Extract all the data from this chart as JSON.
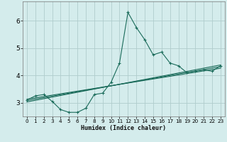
{
  "xlabel": "Humidex (Indice chaleur)",
  "bg_color": "#d4ecec",
  "grid_color": "#b0cccc",
  "line_color": "#1a6b5a",
  "xlim": [
    -0.5,
    23.5
  ],
  "ylim": [
    2.5,
    6.7
  ],
  "yticks": [
    3,
    4,
    5,
    6
  ],
  "xticks": [
    0,
    1,
    2,
    3,
    4,
    5,
    6,
    7,
    8,
    9,
    10,
    11,
    12,
    13,
    14,
    15,
    16,
    17,
    18,
    19,
    20,
    21,
    22,
    23
  ],
  "data_x": [
    0,
    1,
    2,
    3,
    4,
    5,
    6,
    7,
    8,
    9,
    10,
    11,
    12,
    13,
    14,
    15,
    16,
    17,
    18,
    19,
    20,
    21,
    22,
    23
  ],
  "data_y": [
    3.1,
    3.25,
    3.3,
    3.05,
    2.75,
    2.65,
    2.65,
    2.8,
    3.3,
    3.35,
    3.75,
    4.45,
    6.3,
    5.75,
    5.3,
    4.75,
    4.85,
    4.45,
    4.35,
    4.1,
    4.15,
    4.2,
    4.15,
    4.35
  ],
  "reg_lines": [
    {
      "x": [
        0,
        23
      ],
      "y": [
        3.08,
        4.32
      ]
    },
    {
      "x": [
        0,
        23
      ],
      "y": [
        3.13,
        4.26
      ]
    },
    {
      "x": [
        0,
        23
      ],
      "y": [
        3.03,
        4.38
      ]
    }
  ],
  "xlabel_fontsize": 6.0,
  "ytick_fontsize": 6.5,
  "xtick_fontsize": 5.2
}
